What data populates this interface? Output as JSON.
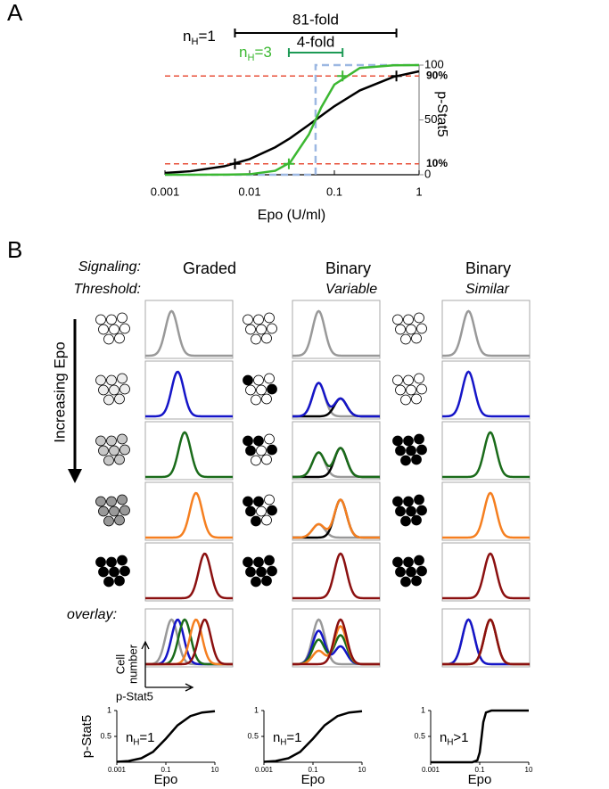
{
  "panel_labels": [
    "A",
    "B"
  ],
  "chart_data": [
    {
      "type": "line",
      "xlabel": "Epo (U/ml)",
      "ylabel": "p-Stat5",
      "xscale": "log",
      "xlim": [
        0.001,
        1
      ],
      "xticks": [
        0.001,
        0.01,
        0.1,
        1
      ],
      "y2lim": [
        0,
        100
      ],
      "y2ticks": [
        0,
        50,
        100
      ],
      "series": [
        {
          "color": "#9db8e2",
          "dashed": true,
          "axis": "y2",
          "x": [
            0.001,
            0.06,
            0.06,
            1
          ],
          "values": [
            0,
            0,
            100,
            100
          ]
        },
        {
          "color": "#000000",
          "axis": "y2",
          "x": [
            0.001,
            0.002,
            0.005,
            0.01,
            0.02,
            0.03,
            0.05,
            0.07,
            0.1,
            0.2,
            0.5,
            1
          ],
          "values": [
            1.6,
            3.2,
            7.7,
            14.3,
            25,
            33.3,
            45.5,
            53.8,
            62.5,
            76.9,
            89.3,
            94.3
          ]
        },
        {
          "color": "#3cb832",
          "axis": "y2",
          "x": [
            0.001,
            0.002,
            0.005,
            0.01,
            0.02,
            0.03,
            0.05,
            0.07,
            0.1,
            0.2,
            0.5,
            1
          ],
          "values": [
            0,
            0,
            0.06,
            0.46,
            3.6,
            11.1,
            36.7,
            61.4,
            82.2,
            97.4,
            99.8,
            100
          ]
        }
      ],
      "hlines": [
        {
          "value": 90,
          "label": "90%",
          "color": "#e8503a"
        },
        {
          "value": 10,
          "label": "10%",
          "color": "#e8503a"
        }
      ],
      "points": [
        {
          "x": 0.0067,
          "y": 10,
          "color": "#000000"
        },
        {
          "x": 0.54,
          "y": 90,
          "color": "#000000"
        },
        {
          "x": 0.029,
          "y": 10,
          "color": "#3cb832"
        },
        {
          "x": 0.125,
          "y": 90,
          "color": "#3cb832"
        }
      ],
      "annotations": [
        {
          "text": "81-fold",
          "from": 0.0067,
          "to": 0.54,
          "color": "#000000"
        },
        {
          "text": "4-fold",
          "from": 0.029,
          "to": 0.125,
          "color": "#1d9a55"
        }
      ],
      "hill_labels": [
        {
          "base": "n",
          "sub": "H",
          "rest": "=1",
          "color": "#000000"
        },
        {
          "base": "n",
          "sub": "H",
          "rest": "=3",
          "color": "#3cb832"
        }
      ]
    },
    {
      "type": "line",
      "ylabel": "p-Stat5",
      "xlabel": "Epo",
      "xscale": "log",
      "xlim": [
        0.001,
        10
      ],
      "xticks": [
        0.001,
        0.1,
        10
      ],
      "ylim": [
        0,
        1
      ],
      "yticks": [
        0.5,
        1
      ],
      "hill_label": {
        "base": "n",
        "sub": "H",
        "rest": "=1"
      },
      "series": [
        {
          "color": "#000000",
          "x": [
            0.001,
            0.003,
            0.01,
            0.03,
            0.1,
            0.3,
            1,
            3,
            10
          ],
          "values": [
            0.008,
            0.024,
            0.077,
            0.2,
            0.455,
            0.714,
            0.893,
            0.962,
            0.988
          ]
        }
      ]
    },
    {
      "type": "line",
      "xlabel": "Epo",
      "xscale": "log",
      "xlim": [
        0.001,
        10
      ],
      "xticks": [
        0.001,
        0.1,
        10
      ],
      "ylim": [
        0,
        1
      ],
      "yticks": [
        0.5,
        1
      ],
      "hill_label": {
        "base": "n",
        "sub": "H",
        "rest": "=1"
      },
      "series": [
        {
          "color": "#000000",
          "x": [
            0.001,
            0.003,
            0.01,
            0.03,
            0.1,
            0.3,
            1,
            3,
            10
          ],
          "values": [
            0.008,
            0.024,
            0.077,
            0.2,
            0.455,
            0.714,
            0.893,
            0.962,
            0.988
          ]
        }
      ]
    },
    {
      "type": "line",
      "xlabel": "Epo",
      "xscale": "log",
      "xlim": [
        0.001,
        10
      ],
      "xticks": [
        0.001,
        0.1,
        10
      ],
      "ylim": [
        0,
        1
      ],
      "yticks": [
        0.5,
        1
      ],
      "hill_label": {
        "base": "n",
        "sub": "H",
        "rest": ">1"
      },
      "series": [
        {
          "color": "#000000",
          "x": [
            0.001,
            0.01,
            0.05,
            0.08,
            0.1,
            0.12,
            0.14,
            0.18,
            0.3,
            1,
            10
          ],
          "values": [
            0,
            0,
            0.001,
            0.037,
            0.189,
            0.5,
            0.775,
            0.962,
            0.999,
            1,
            1
          ]
        }
      ]
    }
  ],
  "panel_b": {
    "row_headers": [
      "Signaling:",
      "Threshold:"
    ],
    "axis_arrow_label": "Increasing Epo",
    "overlay_label": "overlay:",
    "overlay_ylabel": [
      "Cell",
      "number"
    ],
    "overlay_xlabel": "p-Stat5",
    "columns": [
      {
        "signaling": "Graded",
        "rows": [
          {
            "cells": [
              "#fff",
              "#fff",
              "#fff",
              "#fff",
              "#fff",
              "#fff",
              "#fff",
              "#fff"
            ],
            "curves": [
              {
                "color": "#999999",
                "components": [
                  [
                    0.3,
                    0.07,
                    1
                  ]
                ]
              }
            ]
          },
          {
            "cells": [
              "#eee",
              "#eee",
              "#eee",
              "#eee",
              "#eee",
              "#eee",
              "#eee",
              "#eee"
            ],
            "curves": [
              {
                "color": "#1515c8",
                "components": [
                  [
                    0.37,
                    0.07,
                    1
                  ]
                ]
              }
            ]
          },
          {
            "cells": [
              "#c8c8c8",
              "#c8c8c8",
              "#c8c8c8",
              "#c8c8c8",
              "#c8c8c8",
              "#c8c8c8",
              "#c8c8c8",
              "#c8c8c8"
            ],
            "curves": [
              {
                "color": "#1a6b1a",
                "components": [
                  [
                    0.45,
                    0.07,
                    1
                  ]
                ]
              }
            ]
          },
          {
            "cells": [
              "#999",
              "#999",
              "#999",
              "#999",
              "#999",
              "#999",
              "#999",
              "#999"
            ],
            "curves": [
              {
                "color": "#f57f20",
                "components": [
                  [
                    0.58,
                    0.07,
                    1
                  ]
                ]
              }
            ]
          },
          {
            "cells": [
              "#000",
              "#000",
              "#000",
              "#000",
              "#000",
              "#000",
              "#000",
              "#000"
            ],
            "curves": [
              {
                "color": "#8b1010",
                "components": [
                  [
                    0.68,
                    0.07,
                    1
                  ]
                ]
              }
            ]
          }
        ]
      },
      {
        "signaling": "Binary",
        "threshold": "Variable",
        "rows": [
          {
            "cells": [
              "#fff",
              "#fff",
              "#fff",
              "#fff",
              "#fff",
              "#fff",
              "#fff",
              "#fff"
            ],
            "curves": [
              {
                "color": "#999999",
                "components": [
                  [
                    0.3,
                    0.07,
                    1
                  ]
                ]
              }
            ]
          },
          {
            "cells": [
              "#000",
              "#fff",
              "#fff",
              "#fff",
              "#fff",
              "#000",
              "#fff",
              "#fff"
            ],
            "curves": [
              {
                "color": "#999999",
                "components": [
                  [
                    0.3,
                    0.07,
                    0.75
                  ]
                ]
              },
              {
                "color": "#000000",
                "components": [
                  [
                    0.55,
                    0.07,
                    0.4
                  ]
                ]
              },
              {
                "color": "#1515c8",
                "components": [
                  [
                    0.3,
                    0.07,
                    0.75
                  ],
                  [
                    0.55,
                    0.07,
                    0.4
                  ]
                ]
              }
            ]
          },
          {
            "cells": [
              "#000",
              "#000",
              "#fff",
              "#000",
              "#fff",
              "#000",
              "#fff",
              "#fff"
            ],
            "curves": [
              {
                "color": "#999999",
                "components": [
                  [
                    0.3,
                    0.07,
                    0.55
                  ]
                ]
              },
              {
                "color": "#000000",
                "components": [
                  [
                    0.55,
                    0.07,
                    0.65
                  ]
                ]
              },
              {
                "color": "#1a6b1a",
                "components": [
                  [
                    0.3,
                    0.07,
                    0.55
                  ],
                  [
                    0.55,
                    0.07,
                    0.65
                  ]
                ]
              }
            ]
          },
          {
            "cells": [
              "#000",
              "#000",
              "#fff",
              "#000",
              "#fff",
              "#000",
              "#000",
              "#fff"
            ],
            "curves": [
              {
                "color": "#999999",
                "components": [
                  [
                    0.3,
                    0.07,
                    0.3
                  ]
                ]
              },
              {
                "color": "#000000",
                "components": [
                  [
                    0.55,
                    0.07,
                    0.85
                  ]
                ]
              },
              {
                "color": "#f57f20",
                "components": [
                  [
                    0.3,
                    0.07,
                    0.3
                  ],
                  [
                    0.55,
                    0.07,
                    0.85
                  ]
                ]
              }
            ]
          },
          {
            "cells": [
              "#000",
              "#000",
              "#000",
              "#000",
              "#000",
              "#000",
              "#000",
              "#000"
            ],
            "curves": [
              {
                "color": "#8b1010",
                "components": [
                  [
                    0.55,
                    0.07,
                    1
                  ]
                ]
              }
            ]
          }
        ]
      },
      {
        "signaling": "Binary",
        "threshold": "Similar",
        "rows": [
          {
            "cells": [
              "#fff",
              "#fff",
              "#fff",
              "#fff",
              "#fff",
              "#fff",
              "#fff",
              "#fff"
            ],
            "curves": [
              {
                "color": "#999999",
                "components": [
                  [
                    0.3,
                    0.07,
                    1
                  ]
                ]
              }
            ]
          },
          {
            "cells": [
              "#fff",
              "#fff",
              "#fff",
              "#fff",
              "#fff",
              "#fff",
              "#fff",
              "#fff"
            ],
            "curves": [
              {
                "color": "#1515c8",
                "components": [
                  [
                    0.3,
                    0.07,
                    1
                  ]
                ]
              }
            ]
          },
          {
            "cells": [
              "#000",
              "#000",
              "#000",
              "#000",
              "#000",
              "#000",
              "#000",
              "#000"
            ],
            "curves": [
              {
                "color": "#1a6b1a",
                "components": [
                  [
                    0.55,
                    0.07,
                    1
                  ]
                ]
              }
            ]
          },
          {
            "cells": [
              "#000",
              "#000",
              "#000",
              "#000",
              "#000",
              "#000",
              "#000",
              "#000"
            ],
            "curves": [
              {
                "color": "#f57f20",
                "components": [
                  [
                    0.55,
                    0.07,
                    1
                  ]
                ]
              }
            ]
          },
          {
            "cells": [
              "#000",
              "#000",
              "#000",
              "#000",
              "#000",
              "#000",
              "#000",
              "#000"
            ],
            "curves": [
              {
                "color": "#8b1010",
                "components": [
                  [
                    0.55,
                    0.07,
                    1
                  ]
                ]
              }
            ]
          }
        ]
      }
    ]
  }
}
